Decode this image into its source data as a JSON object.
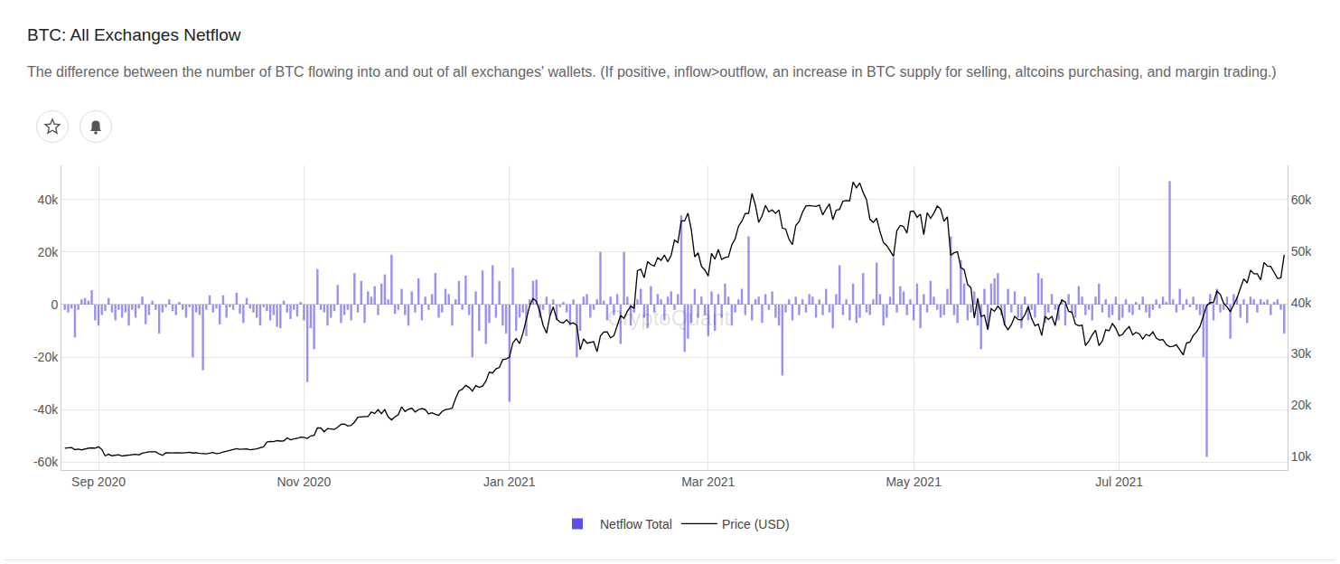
{
  "chart_data": {
    "type": "bar",
    "title": "BTC: All Exchanges Netflow",
    "subtitle": "The difference between the number of BTC flowing into and out of all exchanges' wallets. (If positive, inflow>outflow, an increase in BTC supply for selling, altcoins purchasing, and margin trading.)",
    "annotations": [
      "CryptoQuant"
    ],
    "grid": true,
    "legend": "bottom",
    "categories": [
      null,
      null,
      null,
      null,
      null,
      null,
      null,
      null,
      null,
      null,
      "Sep 2020",
      null,
      null,
      null,
      null,
      null,
      null,
      null,
      null,
      null,
      null,
      null,
      null,
      null,
      null,
      null,
      null,
      null,
      null,
      null,
      null,
      null,
      null,
      null,
      null,
      null,
      null,
      null,
      null,
      null,
      null,
      null,
      null,
      null,
      null,
      null,
      null,
      null,
      null,
      null,
      null,
      null,
      null,
      null,
      null,
      null,
      null,
      null,
      null,
      null,
      null,
      null,
      null,
      null,
      null,
      null,
      null,
      null,
      null,
      null,
      null,
      "Nov 2020",
      null,
      null,
      null,
      null,
      null,
      null,
      null,
      null,
      null,
      null,
      null,
      null,
      null,
      null,
      null,
      null,
      null,
      null,
      null,
      null,
      null,
      null,
      null,
      null,
      null,
      null,
      null,
      null,
      null,
      null,
      null,
      null,
      null,
      null,
      null,
      null,
      null,
      null,
      null,
      null,
      null,
      null,
      null,
      null,
      null,
      null,
      null,
      null,
      null,
      null,
      null,
      null,
      null,
      null,
      null,
      null,
      null,
      null,
      null,
      null,
      "Jan 2021",
      null,
      null,
      null,
      null,
      null,
      null,
      null,
      null,
      null,
      null,
      null,
      null,
      null,
      null,
      null,
      null,
      null,
      null,
      null,
      null,
      null,
      null,
      null,
      null,
      null,
      null,
      null,
      null,
      null,
      null,
      null,
      null,
      null,
      null,
      null,
      null,
      null,
      null,
      null,
      null,
      null,
      null,
      null,
      null,
      null,
      null,
      null,
      null,
      null,
      null,
      null,
      null,
      null,
      null,
      null,
      null,
      null,
      null,
      "Mar 2021",
      null,
      null,
      null,
      null,
      null,
      null,
      null,
      null,
      null,
      null,
      null,
      null,
      null,
      null,
      null,
      null,
      null,
      null,
      null,
      null,
      null,
      null,
      null,
      null,
      null,
      null,
      null,
      null,
      null,
      null,
      null,
      null,
      null,
      null,
      null,
      null,
      null,
      null,
      null,
      null,
      null,
      null,
      null,
      null,
      null,
      null,
      null,
      null,
      null,
      null,
      null,
      null,
      null,
      null,
      null,
      null,
      null,
      null,
      null,
      null,
      "May 2021",
      null,
      null,
      null,
      null,
      null,
      null,
      null,
      null,
      null,
      null,
      null,
      null,
      null,
      null,
      null,
      null,
      null,
      null,
      null,
      null,
      null,
      null,
      null,
      null,
      null,
      null,
      null,
      null,
      null,
      null,
      null,
      null,
      null,
      null,
      null,
      null,
      null,
      null,
      null,
      null,
      null,
      null,
      null,
      null,
      null,
      null,
      null,
      null,
      null,
      null,
      null,
      null,
      null,
      null,
      null,
      null,
      null,
      null,
      null,
      null,
      "Jul 2021",
      null,
      null,
      null,
      null,
      null,
      null,
      null,
      null,
      null,
      null,
      null,
      null,
      null,
      null,
      null,
      null,
      null,
      null,
      null,
      null,
      null,
      null,
      null,
      null,
      null,
      null,
      null,
      null,
      null,
      null,
      null,
      null,
      null,
      null,
      null,
      null,
      null,
      null,
      null,
      null,
      null,
      null,
      null,
      null,
      null,
      null,
      null,
      null,
      null
    ],
    "series": [
      {
        "name": "Netflow Total",
        "type": "bar",
        "color": "#5b4fe6",
        "values": [
          -2000,
          -3000,
          -1500,
          -12500,
          -2000,
          2000,
          2500,
          1500,
          5500,
          -6000,
          -8000,
          -4000,
          -2500,
          2500,
          -3000,
          -6000,
          -2000,
          -5000,
          -3000,
          -8000,
          -2000,
          -5000,
          -1500,
          3000,
          -7500,
          -4000,
          1500,
          -2000,
          -11000,
          -3000,
          -1000,
          2000,
          -2500,
          -4000,
          1000,
          -2000,
          -5000,
          -1000,
          -20000,
          -3000,
          -4000,
          -25000,
          -2000,
          3500,
          -3000,
          -1500,
          -7500,
          3500,
          -5000,
          -1000,
          -2000,
          4500,
          -3500,
          -7000,
          2500,
          -1500,
          -3000,
          -5000,
          -8000,
          -1000,
          -2500,
          -6000,
          -4000,
          -8500,
          -9000,
          1500,
          -3000,
          -5500,
          -2000,
          -4500,
          1000,
          -6000,
          -29500,
          -9000,
          -17000,
          13500,
          -2000,
          -3000,
          -8000,
          -5000,
          -2500,
          7500,
          -7000,
          -4000,
          -2000,
          -6000,
          12000,
          -3000,
          9000,
          -7000,
          5000,
          3000,
          7000,
          -4000,
          8000,
          11500,
          2000,
          19000,
          -3500,
          -2000,
          6000,
          -4000,
          -8000,
          5000,
          -3000,
          10000,
          -6000,
          3000,
          -2000,
          4000,
          12000,
          -5000,
          -3000,
          6000,
          4000,
          -8000,
          2000,
          9000,
          -2000,
          11000,
          -4000,
          -20000,
          5000,
          -10000,
          13000,
          -15000,
          -7000,
          15000,
          -5000,
          9000,
          -8000,
          -11000,
          -37000,
          14000,
          -10000,
          -5000,
          -3000,
          -12000,
          2000,
          9000,
          9500,
          -5000,
          -2000,
          3000,
          -4000,
          2000,
          -6000,
          -1000,
          1000,
          -3000,
          -8000,
          2000,
          -20000,
          -10000,
          3000,
          4000,
          -5000,
          -2000,
          2000,
          20000,
          1500,
          -6000,
          3000,
          -4000,
          4000,
          -15000,
          20000,
          3000,
          -8000,
          -3000,
          2000,
          6000,
          -5000,
          -9000,
          7000,
          -3000,
          4000,
          2000,
          -6000,
          3000,
          5000,
          -2000,
          4000,
          34000,
          -18000,
          -13000,
          -7000,
          6000,
          -5000,
          3000,
          -4000,
          -12000,
          5000,
          -10000,
          4000,
          -5000,
          8000,
          3000,
          -8000,
          -3000,
          2000,
          6000,
          -4000,
          26000,
          -6000,
          2000,
          3000,
          -7000,
          4000,
          -2000,
          5000,
          -5000,
          -8000,
          -27000,
          -3000,
          2000,
          -6000,
          3000,
          -4000,
          2000,
          -3000,
          4000,
          3000,
          -5000,
          2000,
          -4000,
          6000,
          -3000,
          -9000,
          4000,
          15000,
          -4000,
          2000,
          -6000,
          8000,
          -7000,
          -5000,
          12000,
          -3000,
          -4000,
          2000,
          16000,
          4000,
          -8000,
          -5000,
          3000,
          18000,
          -3000,
          7000,
          5000,
          -4000,
          2000,
          -6000,
          8000,
          -9000,
          4000,
          -3000,
          9000,
          3000,
          -2000,
          -5000,
          -4000,
          6000,
          26000,
          -4000,
          -7000,
          17000,
          8000,
          -6000,
          -3000,
          5000,
          -8000,
          -17000,
          6000,
          -9000,
          8000,
          10000,
          12000,
          -4000,
          -8000,
          6000,
          -3000,
          5000,
          -5000,
          -9000,
          3000,
          -6000,
          -2000,
          -5000,
          12000,
          10000,
          -7000,
          -3000,
          4000,
          -2000,
          -6000,
          2000,
          -8000,
          4000,
          -3000,
          -5000,
          7000,
          3000,
          -4000,
          -2000,
          -6000,
          3000,
          8000,
          -3000,
          2000,
          -5000,
          -4000,
          3000,
          -6000,
          -5000,
          2000,
          -3000,
          -4000,
          1000,
          -2000,
          3000,
          -3000,
          -5000,
          -2000,
          2000,
          -1500,
          3000,
          1000,
          47000,
          2000,
          -3000,
          6000,
          -2000,
          2000,
          -1000,
          3000,
          -2000,
          -4000,
          -20000,
          -58000,
          4000,
          -6000,
          6000,
          -3000,
          -2000,
          3000,
          -13000,
          4000,
          3000,
          -5000,
          2000,
          -7000,
          3000,
          2000,
          -3000,
          2000,
          1000,
          2000,
          -4000,
          1000,
          2000,
          -2000,
          -11000
        ]
      },
      {
        "name": "Price (USD)",
        "type": "line",
        "color": "#000000",
        "axis": "y2",
        "values": [
          11650,
          11750,
          11770,
          11360,
          11470,
          11320,
          11530,
          11660,
          11710,
          11650,
          11920,
          11390,
          10170,
          10470,
          10170,
          10250,
          10370,
          10130,
          10230,
          10340,
          10390,
          10440,
          10330,
          10680,
          10790,
          10950,
          10940,
          10930,
          10530,
          10240,
          10740,
          10690,
          10730,
          10780,
          10700,
          10720,
          10780,
          10850,
          10700,
          10780,
          10620,
          10570,
          10550,
          10670,
          10790,
          10600,
          10670,
          10920,
          11060,
          11300,
          11380,
          11550,
          11430,
          11430,
          11510,
          11330,
          11370,
          11510,
          11750,
          11920,
          12820,
          12980,
          12930,
          13120,
          13030,
          13070,
          13650,
          13280,
          13460,
          13560,
          13800,
          13760,
          13550,
          14030,
          14160,
          15590,
          15580,
          14830,
          15480,
          15330,
          15310,
          15700,
          16300,
          16330,
          15970,
          16080,
          16730,
          17680,
          17790,
          17820,
          17800,
          18680,
          18400,
          19150,
          18370,
          19160,
          17730,
          17150,
          17730,
          18180,
          19700,
          18790,
          19220,
          19450,
          18700,
          19150,
          19360,
          19170,
          18320,
          18550,
          18250,
          18050,
          18800,
          19170,
          19270,
          19440,
          21310,
          22800,
          23130,
          23870,
          23480,
          22750,
          23840,
          23480,
          23740,
          24710,
          26440,
          26280,
          27080,
          27360,
          28890,
          29000,
          29370,
          32130,
          33000,
          32020,
          34030,
          36820,
          39370,
          40790,
          40250,
          38240,
          35550,
          34050,
          37370,
          39150,
          36830,
          36190,
          36020,
          36630,
          35890,
          36030,
          35550,
          30820,
          32940,
          32080,
          32280,
          32380,
          30430,
          33470,
          34270,
          34300,
          33110,
          33540,
          35510,
          37470,
          36930,
          38290,
          39260,
          38900,
          46200,
          46480,
          44840,
          47970,
          47380,
          47100,
          48750,
          48230,
          49250,
          47940,
          49200,
          52150,
          51680,
          55890,
          55890,
          57410,
          54090,
          48890,
          49680,
          47050,
          46340,
          45140,
          49590,
          48440,
          50350,
          48380,
          48760,
          48910,
          51210,
          52380,
          54880,
          55850,
          57330,
          57340,
          61240,
          59010,
          55600,
          56900,
          58910,
          57650,
          58030,
          57350,
          58060,
          54500,
          54300,
          52300,
          51300,
          55000,
          55800,
          57600,
          58800,
          58900,
          58800,
          58730,
          58970,
          57070,
          58240,
          59180,
          56140,
          57990,
          58150,
          59750,
          59860,
          59790,
          63470,
          62320,
          63280,
          61440,
          60040,
          56220,
          55600,
          56400,
          53800,
          51700,
          51100,
          50100,
          49000,
          54000,
          55000,
          54800,
          53500,
          57700,
          57800,
          56600,
          57200,
          53200,
          57500,
          56400,
          57400,
          58800,
          58200,
          55800,
          56700,
          49200,
          49700,
          49900,
          46800,
          46400,
          43500,
          42900,
          37000,
          40800,
          37300,
          37500,
          34700,
          38800,
          38300,
          39300,
          38500,
          35700,
          34700,
          35700,
          37300,
          36700,
          36600,
          37600,
          39200,
          36900,
          35500,
          35800,
          33600,
          37300,
          36700,
          37300,
          35500,
          39000,
          40500,
          40100,
          38300,
          38100,
          35800,
          35500,
          35600,
          31600,
          32500,
          33700,
          34600,
          31600,
          32500,
          34700,
          34500,
          35900,
          35000,
          33500,
          33800,
          34700,
          35300,
          33700,
          34200,
          33900,
          32900,
          33800,
          33500,
          34300,
          33100,
          32700,
          32800,
          31800,
          31400,
          31500,
          31800,
          30800,
          29800,
          32100,
          32300,
          33600,
          34300,
          35400,
          37300,
          39400,
          40000,
          40000,
          42200,
          41600,
          39900,
          39200,
          38200,
          39700,
          40900,
          42800,
          44600,
          43800,
          46300,
          45600,
          45600,
          44400,
          47800,
          47100,
          47000,
          45900,
          44700,
          44800,
          49300
        ]
      }
    ],
    "ylim": [
      -63000,
      53000
    ],
    "yticks": [
      {
        "value": -60000,
        "label": "-60k"
      },
      {
        "value": -40000,
        "label": "-40k"
      },
      {
        "value": -20000,
        "label": "-20k"
      },
      0,
      {
        "value": 20000,
        "label": "20k"
      },
      {
        "value": 40000,
        "label": "40k"
      }
    ],
    "y2lim": [
      7400,
      66700
    ],
    "y2ticks": [
      {
        "value": 10000,
        "label": "10k"
      },
      {
        "value": 20000,
        "label": "20k"
      },
      {
        "value": 30000,
        "label": "30k"
      },
      {
        "value": 40000,
        "label": "40k"
      },
      {
        "value": 50000,
        "label": "50k"
      },
      {
        "value": 60000,
        "label": "60k"
      }
    ]
  }
}
